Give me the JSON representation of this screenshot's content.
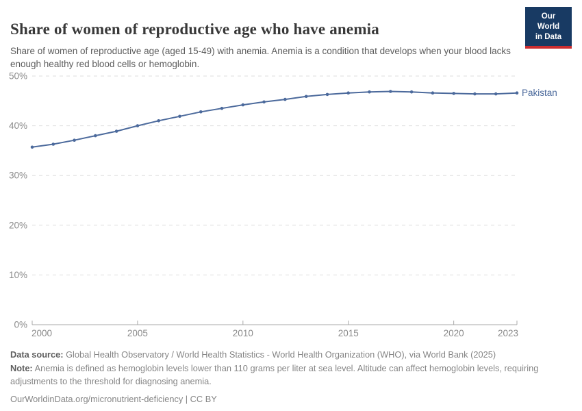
{
  "header": {
    "title": "Share of women of reproductive age who have anemia",
    "subtitle": "Share of women of reproductive age (aged 15-49) with anemia. Anemia is a condition that develops when your blood lacks enough healthy red blood cells or hemoglobin.",
    "logo": {
      "line1": "Our World",
      "line2": "in Data"
    }
  },
  "chart_data": {
    "type": "line",
    "title": "Share of women of reproductive age who have anemia",
    "xlabel": "",
    "ylabel": "",
    "unit": "%",
    "xlim": [
      2000,
      2023
    ],
    "ylim": [
      0,
      50
    ],
    "xticks": [
      2000,
      2005,
      2010,
      2015,
      2020,
      2023
    ],
    "yticks": [
      0,
      10,
      20,
      30,
      40,
      50
    ],
    "ytick_suffix": "%",
    "grid": "horizontal-dashed",
    "legend_position": "end-of-line-label",
    "series": [
      {
        "name": "Pakistan",
        "color": "#4c6a9c",
        "x": [
          2000,
          2001,
          2002,
          2003,
          2004,
          2005,
          2006,
          2007,
          2008,
          2009,
          2010,
          2011,
          2012,
          2013,
          2014,
          2015,
          2016,
          2017,
          2018,
          2019,
          2020,
          2021,
          2022,
          2023
        ],
        "values": [
          35.7,
          36.3,
          37.1,
          38.0,
          38.9,
          40.0,
          41.0,
          41.9,
          42.8,
          43.5,
          44.2,
          44.8,
          45.3,
          45.9,
          46.3,
          46.6,
          46.8,
          46.9,
          46.8,
          46.6,
          46.5,
          46.4,
          46.4,
          46.6
        ]
      }
    ]
  },
  "footer": {
    "datasource_label": "Data source:",
    "datasource_text": "Global Health Observatory / World Health Statistics - World Health Organization (WHO), via World Bank (2025)",
    "note_label": "Note:",
    "note_text": "Anemia is defined as hemoglobin levels lower than 110 grams per liter at sea level. Altitude can affect hemoglobin levels, requiring adjustments to the threshold for diagnosing anemia.",
    "license": "OurWorldinData.org/micronutrient-deficiency | CC BY"
  },
  "colors": {
    "line": "#4c6a9c",
    "gridline": "#dedede",
    "axis": "#a8a8a8",
    "tick_label": "#8a8a8a",
    "logo_bg": "#183a63",
    "logo_stripe": "#cb2d30"
  }
}
